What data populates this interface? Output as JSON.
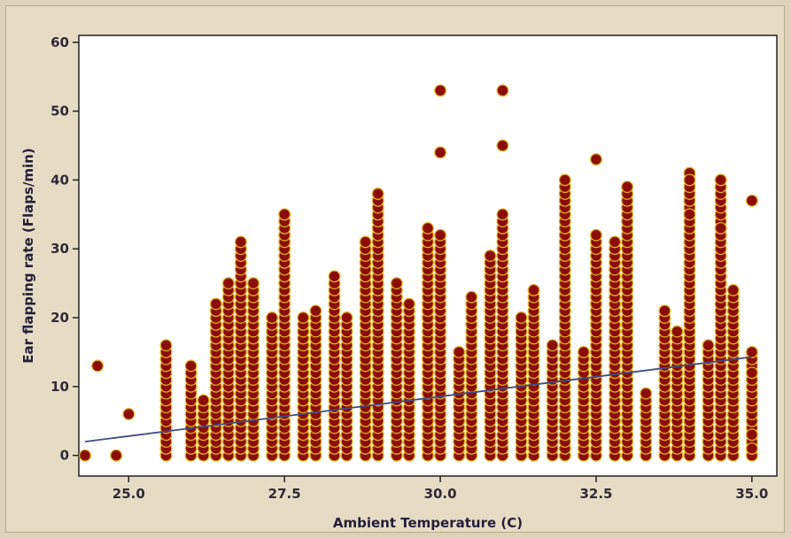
{
  "chart_data": {
    "type": "scatter",
    "xlabel": "Ambient Temperature (C)",
    "ylabel": "Ear flapping rate (Flaps/min)",
    "xlim": [
      24.2,
      35.4
    ],
    "ylim": [
      -3,
      61
    ],
    "x_ticks": [
      "25.0",
      "27.5",
      "30.0",
      "32.5",
      "35.0"
    ],
    "y_ticks": [
      "0",
      "10",
      "20",
      "30",
      "40",
      "50",
      "60"
    ],
    "grid": false,
    "colors": {
      "point": "#8b0d05",
      "point_edge": "#e2b022",
      "trend": "#3f4a86"
    },
    "trend_line": {
      "x": [
        24.3,
        35.0
      ],
      "y": [
        2,
        14.3
      ]
    },
    "column_x": [
      24.3,
      24.5,
      24.8,
      25.0,
      25.6,
      26.0,
      26.2,
      26.4,
      26.6,
      26.8,
      27.0,
      27.3,
      27.5,
      27.8,
      28.0,
      28.3,
      28.5,
      28.8,
      29.0,
      29.3,
      29.5,
      29.8,
      30.0,
      30.3,
      30.5,
      30.8,
      31.0,
      31.3,
      31.5,
      31.8,
      32.0,
      32.3,
      32.5,
      32.8,
      33.0,
      33.3,
      33.6,
      33.8,
      34.0,
      34.3,
      34.5,
      34.7,
      35.0
    ],
    "column_ranges": [
      [
        0,
        0
      ],
      [
        13,
        13
      ],
      [
        0,
        0
      ],
      [
        6,
        6
      ],
      [
        0,
        16
      ],
      [
        0,
        13
      ],
      [
        0,
        8
      ],
      [
        0,
        22
      ],
      [
        0,
        25
      ],
      [
        0,
        31
      ],
      [
        0,
        25
      ],
      [
        0,
        20
      ],
      [
        0,
        35
      ],
      [
        0,
        20
      ],
      [
        0,
        21
      ],
      [
        0,
        26
      ],
      [
        0,
        20
      ],
      [
        0,
        31
      ],
      [
        0,
        38
      ],
      [
        0,
        25
      ],
      [
        0,
        22
      ],
      [
        0,
        33
      ],
      [
        0,
        32
      ],
      [
        0,
        15
      ],
      [
        0,
        23
      ],
      [
        0,
        29
      ],
      [
        0,
        35
      ],
      [
        0,
        20
      ],
      [
        0,
        24
      ],
      [
        0,
        16
      ],
      [
        0,
        40
      ],
      [
        0,
        15
      ],
      [
        0,
        32
      ],
      [
        0,
        31
      ],
      [
        0,
        39
      ],
      [
        0,
        9
      ],
      [
        0,
        21
      ],
      [
        0,
        18
      ],
      [
        0,
        41
      ],
      [
        0,
        16
      ],
      [
        0,
        40
      ],
      [
        0,
        24
      ],
      [
        0,
        15
      ]
    ],
    "outliers": [
      {
        "x": 30.0,
        "y": 53
      },
      {
        "x": 31.0,
        "y": 53
      },
      {
        "x": 31.0,
        "y": 45
      },
      {
        "x": 30.0,
        "y": 44
      },
      {
        "x": 32.5,
        "y": 43
      },
      {
        "x": 34.0,
        "y": 40
      },
      {
        "x": 34.5,
        "y": 40
      },
      {
        "x": 29.0,
        "y": 38
      },
      {
        "x": 35.0,
        "y": 37
      },
      {
        "x": 27.5,
        "y": 35
      },
      {
        "x": 34.0,
        "y": 35
      },
      {
        "x": 34.5,
        "y": 33
      },
      {
        "x": 35.0,
        "y": 15
      },
      {
        "x": 35.0,
        "y": 12
      },
      {
        "x": 35.0,
        "y": 3
      },
      {
        "x": 35.0,
        "y": 1
      }
    ]
  }
}
